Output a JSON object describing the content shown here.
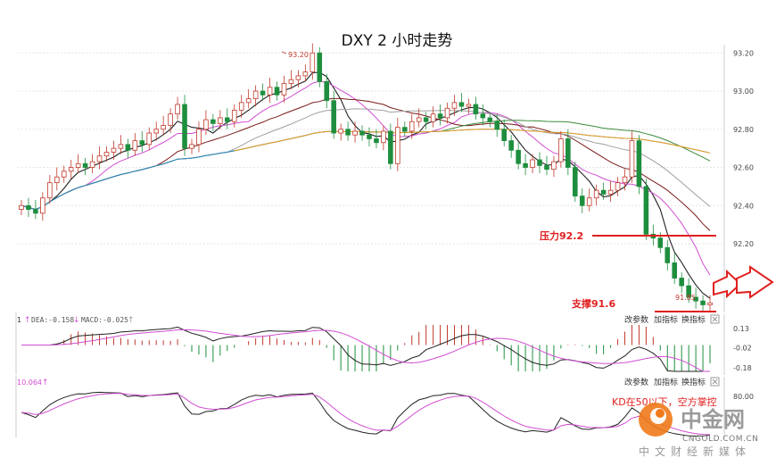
{
  "chart_data": [
    {
      "type": "candlestick",
      "title": "DXY 2 小时走势",
      "y_ticks": [
        "93.20",
        "93.00",
        "92.80",
        "92.60",
        "92.40",
        "92.20"
      ],
      "ylim": [
        91.84,
        93.22
      ],
      "grid": true,
      "high_label": "93.20",
      "low_label": "91.85",
      "resistance": {
        "label": "压力92.2",
        "value": 92.21
      },
      "support": {
        "label": "支撑91.6",
        "value": 91.6
      },
      "closes": [
        92.4,
        92.38,
        92.36,
        92.44,
        92.52,
        92.55,
        92.58,
        92.6,
        92.62,
        92.6,
        92.63,
        92.66,
        92.68,
        92.7,
        92.72,
        92.69,
        92.74,
        92.72,
        92.78,
        92.8,
        92.82,
        92.88,
        92.93,
        92.7,
        92.72,
        92.8,
        92.85,
        92.83,
        92.86,
        92.84,
        92.9,
        92.94,
        92.96,
        93.0,
        92.98,
        93.02,
        92.98,
        93.04,
        93.06,
        93.08,
        93.1,
        93.2,
        93.05,
        92.95,
        92.78,
        92.8,
        92.77,
        92.79,
        92.77,
        92.75,
        92.73,
        92.79,
        92.62,
        92.81,
        92.79,
        92.84,
        92.86,
        92.84,
        92.88,
        92.86,
        92.91,
        92.94,
        92.92,
        92.93,
        92.88,
        92.86,
        92.84,
        92.8,
        92.74,
        92.69,
        92.62,
        92.6,
        92.64,
        92.61,
        92.59,
        92.63,
        92.75,
        92.6,
        92.45,
        92.4,
        92.44,
        92.48,
        92.46,
        92.48,
        92.52,
        92.55,
        92.74,
        92.5,
        92.25,
        92.23,
        92.18,
        92.1,
        92.02,
        91.98,
        91.92,
        91.9,
        91.88,
        91.89
      ]
    },
    {
      "type": "line",
      "indicator": "MACD",
      "header_value": "1",
      "dea_label": "DEA:-0.158",
      "macd_label": "MACD:-0.025",
      "buttons": [
        "改参数",
        "加指标",
        "换指标"
      ],
      "y_ticks": [
        "0.13",
        "-0.02",
        "-0.18"
      ],
      "ylim": [
        -0.21,
        0.16
      ]
    },
    {
      "type": "line",
      "indicator": "KD",
      "header_value": "10.064",
      "buttons": [
        "改参数",
        "加指标",
        "换指标"
      ],
      "y_ticks": [
        "80.00"
      ],
      "ylim": [
        0,
        100
      ],
      "annotation": "KD在50以下，空方掌控"
    }
  ],
  "watermark": {
    "name": "中金网",
    "domain": "CNGOLD.COM.CN",
    "slogan": "中文财经新媒体"
  },
  "colors": {
    "up": "#c0392b",
    "down": "#1e8e3e",
    "ma5": "#222222",
    "ma10": "#d24dd2",
    "ma20": "#7a1a1a",
    "ma30": "#a0a0a0",
    "ma60": "#3a8a3a",
    "ma120": "#2e86c1",
    "ma250": "#f0a020",
    "annotation": "#e02020"
  }
}
